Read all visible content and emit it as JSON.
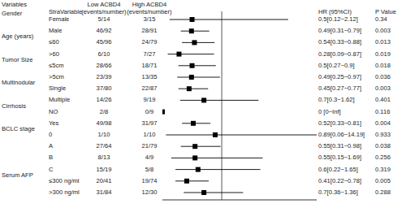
{
  "chart_data": {
    "type": "forest",
    "headers": [
      [
        "Variables"
      ],
      [
        "StraVariable"
      ],
      [
        "Low ACBD4",
        "(events/number)"
      ],
      [
        "High ACBD4",
        "(events/number)"
      ],
      [
        "HR (95%CI)"
      ],
      [
        "P Value"
      ]
    ],
    "rows": [
      {
        "group": "Gender",
        "subgroup": "Female",
        "low": "5/14",
        "high": "3/15",
        "hr_text": "0.5[0.12~2.12]",
        "p": 0.34,
        "hr": 0.5,
        "ci": [
          0.12,
          2.12
        ]
      },
      {
        "group": null,
        "subgroup": "Male",
        "low": "46/92",
        "high": "28/91",
        "hr_text": "0.49[0.31~0.79]",
        "p": 0.003,
        "hr": 0.49,
        "ci": [
          0.31,
          0.79
        ]
      },
      {
        "group": "Age (years)",
        "subgroup": "≤60",
        "low": "45/96",
        "high": "24/79",
        "hr_text": "0.54[0.33~0.88]",
        "p": 0.013,
        "hr": 0.54,
        "ci": [
          0.33,
          0.88
        ]
      },
      {
        "group": null,
        "subgroup": ">60",
        "low": "6/10",
        "high": "7/27",
        "hr_text": "0.28[0.09~0.87]",
        "p": 0.019,
        "hr": 0.28,
        "ci": [
          0.09,
          0.87
        ]
      },
      {
        "group": "Tumor Size",
        "subgroup": "≤5cm",
        "low": "28/66",
        "high": "18/71",
        "hr_text": "0.5[0.27~0.9]",
        "p": 0.018,
        "hr": 0.5,
        "ci": [
          0.27,
          0.9
        ]
      },
      {
        "group": null,
        "subgroup": ">5cm",
        "low": "23/39",
        "high": "13/35",
        "hr_text": "0.49[0.25~0.97]",
        "p": 0.036,
        "hr": 0.49,
        "ci": [
          0.25,
          0.97
        ]
      },
      {
        "group": "Multinodular",
        "subgroup": "Single",
        "low": "37/80",
        "high": "22/87",
        "hr_text": "0.45[0.27~0.77]",
        "p": 0.003,
        "hr": 0.45,
        "ci": [
          0.27,
          0.77
        ]
      },
      {
        "group": null,
        "subgroup": "Multiple",
        "low": "14/26",
        "high": "9/19",
        "hr_text": "0.7[0.3~1.62]",
        "p": 0.401,
        "hr": 0.7,
        "ci": [
          0.3,
          1.62
        ]
      },
      {
        "group": "Cirrhosis",
        "subgroup": "NO",
        "low": "2/8",
        "high": "0/9",
        "hr_text": "0 [0~Inf]",
        "p": 0.116,
        "hr": 0,
        "ci": [
          0,
          null
        ]
      },
      {
        "group": null,
        "subgroup": "Yes",
        "low": "49/98",
        "high": "31/97",
        "hr_text": "0.52[0.33~0.81]",
        "p": 0.004,
        "hr": 0.52,
        "ci": [
          0.33,
          0.81
        ]
      },
      {
        "group": "BCLC stage",
        "subgroup": "0",
        "low": "1/10",
        "high": "1/10",
        "hr_text": "0.89[0.06~14.19]",
        "p": 0.933,
        "hr": 0.89,
        "ci": [
          0.06,
          14.19
        ]
      },
      {
        "group": null,
        "subgroup": "A",
        "low": "27/64",
        "high": "21/79",
        "hr_text": "0.55[0.31~0.98]",
        "p": 0.038,
        "hr": 0.55,
        "ci": [
          0.31,
          0.98
        ]
      },
      {
        "group": null,
        "subgroup": "B",
        "low": "8/13",
        "high": "4/9",
        "hr_text": "0.55[0.15~1.69]",
        "p": 0.256,
        "hr": 0.55,
        "ci": [
          0.15,
          1.69
        ]
      },
      {
        "group": null,
        "subgroup": "C",
        "low": "15/19",
        "high": "5/8",
        "hr_text": "0.6[0.22~1.65]",
        "p": 0.319,
        "hr": 0.6,
        "ci": [
          0.22,
          1.65
        ]
      },
      {
        "group": "Serum AFP",
        "subgroup": "≤300 ng/ml",
        "low": "20/41",
        "high": "19/74",
        "hr_text": "0.41[0.22~0.78]",
        "p": 0.005,
        "hr": 0.41,
        "ci": [
          0.22,
          0.78
        ]
      },
      {
        "group": null,
        "subgroup": ">300 ng/ml",
        "low": "31/84",
        "high": "12/30",
        "hr_text": "0.7[0.36~1.36]",
        "p": 0.288,
        "hr": 0.7,
        "ci": [
          0.36,
          1.36
        ]
      }
    ],
    "xlim": [
      0,
      2.6
    ],
    "xticks": [
      1
    ],
    "grid": true,
    "tick_labels": false
  }
}
